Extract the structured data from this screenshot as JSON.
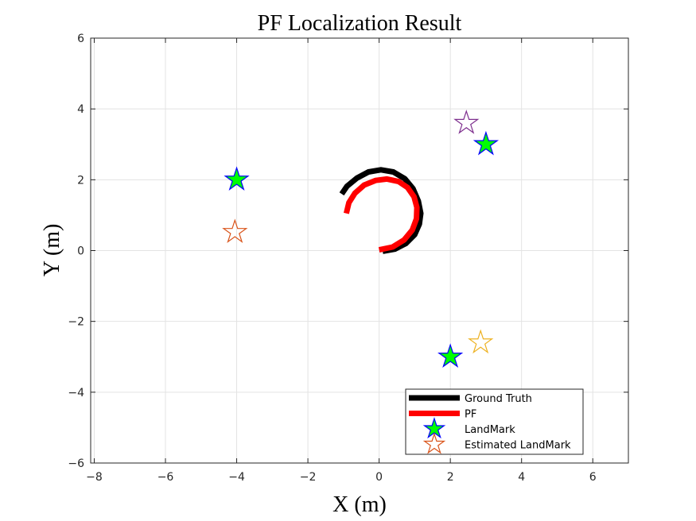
{
  "chart_data": {
    "type": "line",
    "title": "PF Localization Result",
    "xlabel": "X (m)",
    "ylabel": "Y (m)",
    "xlim": [
      -8.1,
      7.0
    ],
    "ylim": [
      -6,
      6
    ],
    "xticks": [
      -8,
      -6,
      -4,
      -2,
      0,
      2,
      4,
      6
    ],
    "yticks": [
      -6,
      -4,
      -2,
      0,
      2,
      4,
      6
    ],
    "xtick_labels": [
      "−8",
      "−6",
      "−4",
      "−2",
      "0",
      "2",
      "4",
      "6"
    ],
    "ytick_labels": [
      "−6",
      "−4",
      "−2",
      "0",
      "2",
      "4",
      "6"
    ],
    "grid": true,
    "legend_position": "bottom-right",
    "series": [
      {
        "name": "Ground Truth",
        "kind": "line",
        "color": "#000000",
        "points": [
          [
            0.1,
            -0.02
          ],
          [
            0.44,
            0.04
          ],
          [
            0.75,
            0.2
          ],
          [
            1.0,
            0.45
          ],
          [
            1.13,
            0.75
          ],
          [
            1.17,
            1.05
          ],
          [
            1.1,
            1.4
          ],
          [
            0.95,
            1.75
          ],
          [
            0.72,
            2.03
          ],
          [
            0.4,
            2.22
          ],
          [
            0.05,
            2.28
          ],
          [
            -0.3,
            2.22
          ],
          [
            -0.62,
            2.05
          ],
          [
            -0.9,
            1.82
          ],
          [
            -1.05,
            1.6
          ]
        ]
      },
      {
        "name": "PF",
        "kind": "line",
        "color": "#ff0000",
        "points": [
          [
            0.0,
            0.02
          ],
          [
            0.38,
            0.1
          ],
          [
            0.7,
            0.3
          ],
          [
            0.93,
            0.58
          ],
          [
            1.05,
            0.9
          ],
          [
            1.06,
            1.22
          ],
          [
            0.98,
            1.52
          ],
          [
            0.8,
            1.78
          ],
          [
            0.55,
            1.95
          ],
          [
            0.22,
            2.02
          ],
          [
            -0.1,
            1.98
          ],
          [
            -0.42,
            1.85
          ],
          [
            -0.68,
            1.62
          ],
          [
            -0.85,
            1.35
          ],
          [
            -0.92,
            1.05
          ]
        ]
      },
      {
        "name": "LandMark",
        "kind": "marker",
        "marker": "filled-star",
        "fill": "#00ff00",
        "stroke": "#0000ff",
        "points": [
          [
            -4.0,
            2.0
          ],
          [
            3.0,
            3.0
          ],
          [
            2.0,
            -3.0
          ]
        ]
      },
      {
        "name": "Estimated LandMark",
        "kind": "marker",
        "marker": "hollow-star",
        "points": [
          [
            -4.05,
            0.52
          ],
          [
            2.45,
            3.6
          ],
          [
            2.85,
            -2.6
          ]
        ],
        "colors": [
          "#d95319",
          "#7e2f8e",
          "#edb120"
        ]
      }
    ],
    "legend": [
      {
        "label": "Ground Truth",
        "kind": "line",
        "color": "#000000"
      },
      {
        "label": "PF",
        "kind": "line",
        "color": "#ff0000"
      },
      {
        "label": "LandMark",
        "kind": "filled-star",
        "fill": "#00ff00",
        "stroke": "#0000ff"
      },
      {
        "label": "Estimated LandMark",
        "kind": "hollow-star",
        "stroke": "#d95319"
      }
    ]
  }
}
